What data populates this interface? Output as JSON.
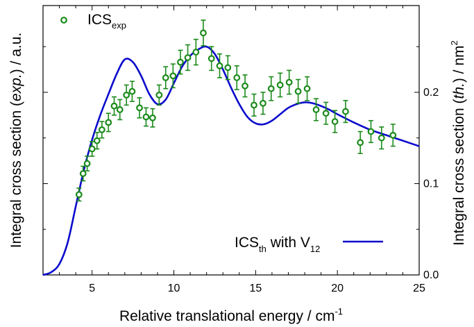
{
  "chart_data": {
    "type": "scatter",
    "title": "",
    "xlabel": "Relative translational energy / cm",
    "xlabel_sup": "-1",
    "ylabel_left": {
      "pre": "Integral cross section (",
      "italic": "exp.",
      "post": ") / a.u."
    },
    "ylabel_right": {
      "pre": "Integral cross section (",
      "italic": "th.",
      "post": ") / nm",
      "sup": "2"
    },
    "xlim": [
      2,
      25
    ],
    "xticks": [
      5,
      10,
      15,
      20,
      25
    ],
    "ylim_right": [
      0.0,
      0.295
    ],
    "yticks_right": [
      0.0,
      0.1,
      0.2
    ],
    "yticklabels_right": [
      "0.0",
      "0.1",
      "0.2"
    ],
    "yticklabels_left": [],
    "grid": false,
    "legend_placement": "top-left",
    "series": [
      {
        "name": "ICS",
        "name_sub": "exp",
        "kind": "points_with_errorbars",
        "color": "#1a8a1a",
        "points": [
          [
            4.2,
            0.088,
            0.007
          ],
          [
            4.45,
            0.111,
            0.008
          ],
          [
            4.7,
            0.122,
            0.008
          ],
          [
            5.0,
            0.138,
            0.008
          ],
          [
            5.3,
            0.147,
            0.009
          ],
          [
            5.6,
            0.159,
            0.009
          ],
          [
            6.0,
            0.167,
            0.01
          ],
          [
            6.35,
            0.185,
            0.01
          ],
          [
            6.7,
            0.181,
            0.011
          ],
          [
            7.1,
            0.197,
            0.011
          ],
          [
            7.45,
            0.201,
            0.011
          ],
          [
            7.9,
            0.183,
            0.011
          ],
          [
            8.3,
            0.173,
            0.01
          ],
          [
            8.7,
            0.172,
            0.01
          ],
          [
            9.1,
            0.197,
            0.011
          ],
          [
            9.5,
            0.216,
            0.012
          ],
          [
            9.95,
            0.218,
            0.013
          ],
          [
            10.4,
            0.233,
            0.013
          ],
          [
            10.85,
            0.238,
            0.014
          ],
          [
            11.35,
            0.244,
            0.014
          ],
          [
            11.8,
            0.265,
            0.014
          ],
          [
            12.3,
            0.237,
            0.013
          ],
          [
            12.8,
            0.229,
            0.013
          ],
          [
            13.3,
            0.227,
            0.013
          ],
          [
            13.85,
            0.216,
            0.013
          ],
          [
            14.35,
            0.207,
            0.012
          ],
          [
            14.9,
            0.186,
            0.012
          ],
          [
            15.45,
            0.188,
            0.012
          ],
          [
            15.95,
            0.204,
            0.013
          ],
          [
            16.5,
            0.208,
            0.013
          ],
          [
            17.05,
            0.211,
            0.013
          ],
          [
            17.6,
            0.201,
            0.013
          ],
          [
            18.15,
            0.204,
            0.013
          ],
          [
            18.7,
            0.181,
            0.012
          ],
          [
            19.3,
            0.177,
            0.012
          ],
          [
            19.85,
            0.168,
            0.012
          ],
          [
            20.5,
            0.179,
            0.012
          ],
          [
            21.4,
            0.145,
            0.012
          ],
          [
            22.05,
            0.157,
            0.012
          ],
          [
            22.7,
            0.15,
            0.012
          ],
          [
            23.4,
            0.153,
            0.012
          ]
        ]
      },
      {
        "name": "ICS",
        "name_sub": "th",
        "name_suffix": " with V",
        "name_suffix_sub": "12",
        "kind": "line",
        "color": "#0a0acc",
        "x": [
          2.0,
          2.5,
          3.0,
          3.5,
          4.0,
          4.5,
          5.0,
          5.5,
          6.0,
          6.5,
          7.0,
          7.5,
          8.0,
          8.5,
          9.0,
          9.5,
          10.0,
          10.5,
          11.0,
          11.5,
          12.0,
          12.5,
          13.0,
          13.5,
          14.0,
          14.5,
          15.0,
          15.5,
          16.0,
          16.5,
          17.0,
          17.5,
          18.0,
          18.5,
          19.0,
          19.5,
          20.0,
          21.0,
          22.0,
          23.0,
          24.0,
          25.0
        ],
        "y": [
          0.0,
          0.003,
          0.012,
          0.035,
          0.075,
          0.115,
          0.148,
          0.175,
          0.198,
          0.22,
          0.236,
          0.233,
          0.218,
          0.198,
          0.187,
          0.192,
          0.21,
          0.228,
          0.24,
          0.247,
          0.25,
          0.242,
          0.225,
          0.205,
          0.187,
          0.173,
          0.166,
          0.165,
          0.169,
          0.176,
          0.183,
          0.187,
          0.189,
          0.188,
          0.185,
          0.181,
          0.176,
          0.167,
          0.159,
          0.153,
          0.147,
          0.141
        ]
      }
    ]
  }
}
